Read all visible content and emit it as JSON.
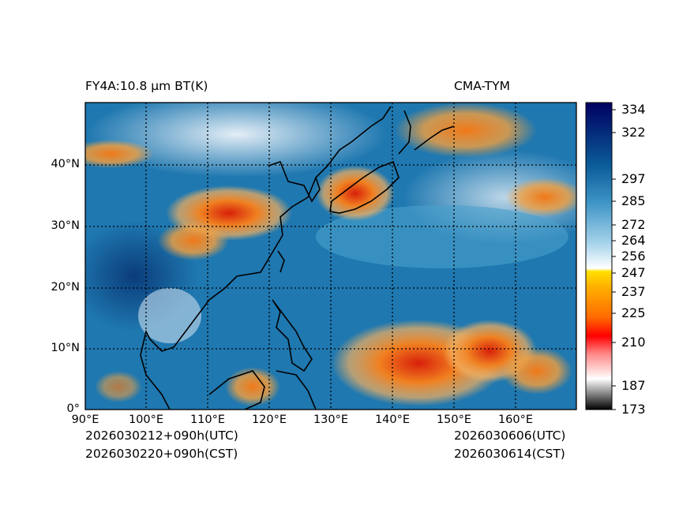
{
  "header": {
    "left_title": "FY4A:10.8 µm BT(K)",
    "right_title": "CMA-TYM"
  },
  "map": {
    "lat_labels": [
      "40°N",
      "30°N",
      "20°N",
      "10°N",
      "0°"
    ],
    "lon_labels": [
      "90°E",
      "100°E",
      "110°E",
      "120°E",
      "130°E",
      "140°E",
      "150°E",
      "160°E"
    ],
    "extent_lon": [
      90,
      170
    ],
    "extent_lat": [
      0,
      50
    ]
  },
  "colorbar": {
    "ticks": [
      "334",
      "322",
      "297",
      "285",
      "272",
      "264",
      "256",
      "247",
      "237",
      "225",
      "210",
      "187",
      "173"
    ],
    "range": [
      173,
      334
    ]
  },
  "footer": {
    "init_utc": "2026030212+090h(UTC)",
    "init_cst": "2026030220+090h(CST)",
    "valid_utc": "2026030606(UTC)",
    "valid_cst": "2026030614(CST)"
  }
}
